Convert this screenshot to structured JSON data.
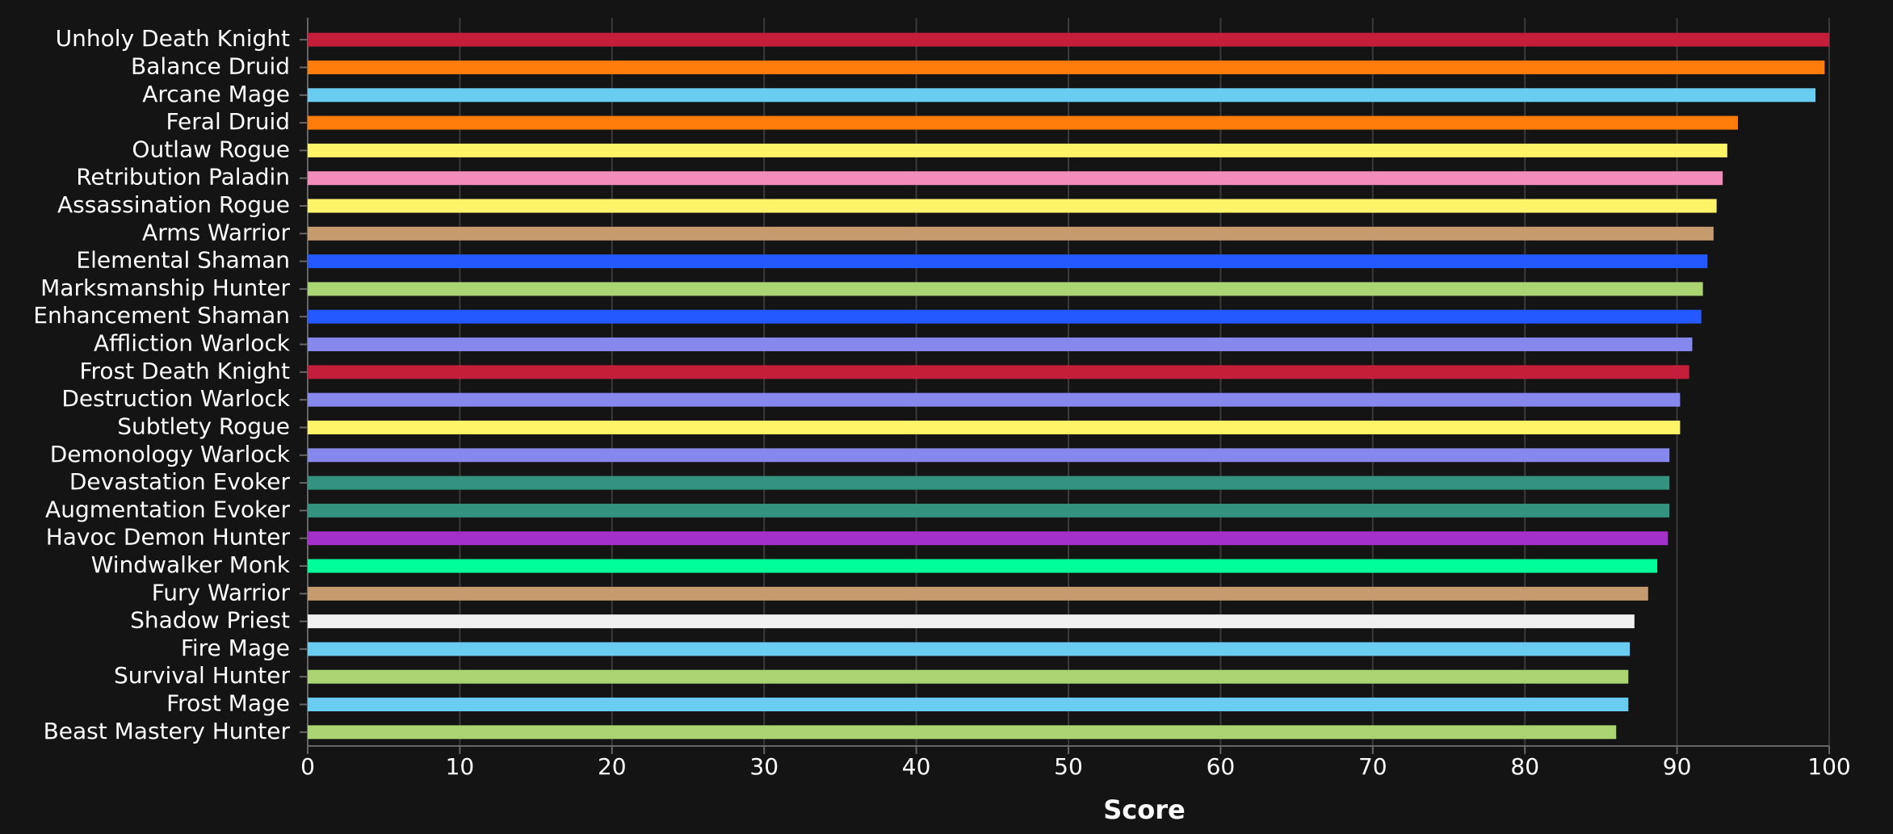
{
  "chart_data": {
    "type": "bar",
    "orientation": "horizontal",
    "x_label": "Score",
    "categories": [
      "Unholy Death Knight",
      "Balance Druid",
      "Arcane Mage",
      "Feral Druid",
      "Outlaw Rogue",
      "Retribution Paladin",
      "Assassination Rogue",
      "Arms Warrior",
      "Elemental Shaman",
      "Marksmanship Hunter",
      "Enhancement Shaman",
      "Affliction Warlock",
      "Frost Death Knight",
      "Destruction Warlock",
      "Subtlety Rogue",
      "Demonology Warlock",
      "Devastation Evoker",
      "Augmentation Evoker",
      "Havoc Demon Hunter",
      "Windwalker Monk",
      "Fury Warrior",
      "Shadow Priest",
      "Fire Mage",
      "Survival Hunter",
      "Frost Mage",
      "Beast Mastery Hunter"
    ],
    "values": [
      100,
      99.7,
      99.1,
      94.0,
      93.3,
      93.0,
      92.6,
      92.4,
      92.0,
      91.7,
      91.6,
      91.0,
      90.8,
      90.2,
      90.2,
      89.5,
      89.5,
      89.5,
      89.4,
      88.7,
      88.1,
      87.2,
      86.9,
      86.8,
      86.8,
      86.0
    ],
    "colors": [
      "#c41e3a",
      "#ff7c0a",
      "#69ccf0",
      "#ff7c0a",
      "#fff468",
      "#f48cba",
      "#fff468",
      "#c69b6d",
      "#2459ff",
      "#abd473",
      "#2459ff",
      "#8788ee",
      "#c41e3a",
      "#8788ee",
      "#fff468",
      "#8788ee",
      "#33937f",
      "#33937f",
      "#a330c9",
      "#00ff98",
      "#c69b6d",
      "#f0f0f0",
      "#69ccf0",
      "#abd473",
      "#69ccf0",
      "#abd473"
    ],
    "xlim": [
      0,
      100
    ],
    "xticks": [
      0,
      10,
      20,
      30,
      40,
      50,
      60,
      70,
      80,
      90,
      100
    ],
    "grid": true
  }
}
